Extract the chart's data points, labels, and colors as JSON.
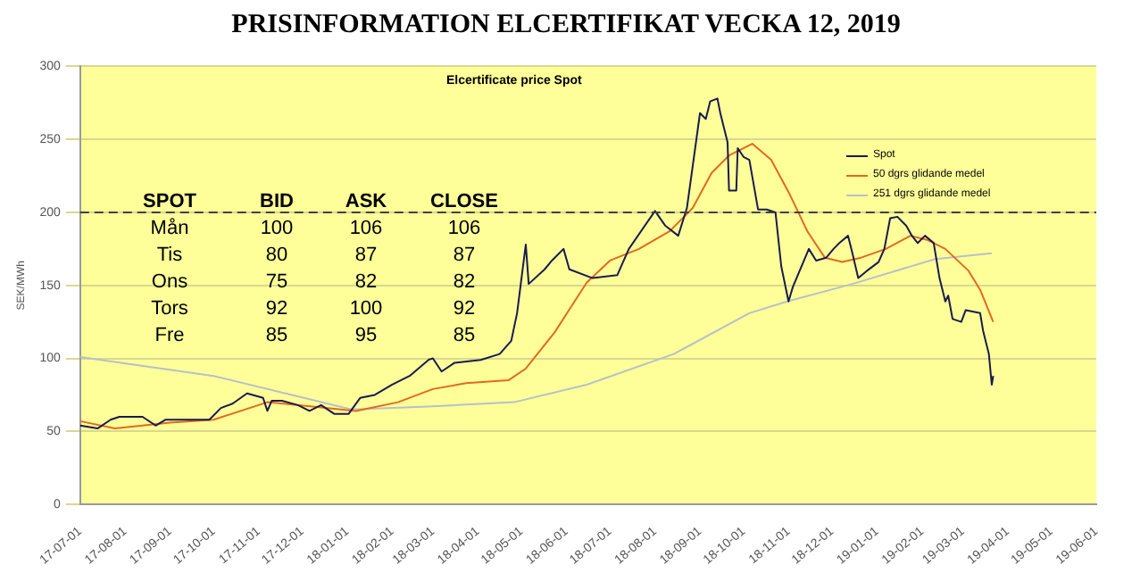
{
  "chart_data": {
    "type": "line",
    "title": "PRISINFORMATION ELCERTIFIKAT VECKA 12, 2019",
    "subtitle": "Elcertificate price Spot",
    "ylabel": "SEK/MWh",
    "annotations": [
      "SPOT",
      "BID",
      "ASK",
      "CLOSE",
      "Mån",
      "100",
      "106",
      "106",
      "Tis",
      "80",
      "87",
      "87",
      "Ons",
      "75",
      "82",
      "82",
      "Tors",
      "92",
      "100",
      "92",
      "Fre",
      "85",
      "95",
      "85"
    ],
    "ylim": [
      0,
      300
    ],
    "yticks": [
      0,
      50,
      100,
      150,
      200,
      250,
      300
    ],
    "xlim": [
      "2017-07-01",
      "2019-06-01"
    ],
    "xticks": [
      {
        "value": "2017-07-01",
        "label": "17-07-01"
      },
      {
        "value": "2017-08-01",
        "label": "17-08-01"
      },
      {
        "value": "2017-09-01",
        "label": "17-09-01"
      },
      {
        "value": "2017-10-01",
        "label": "17-10-01"
      },
      {
        "value": "2017-11-01",
        "label": "17-11-01"
      },
      {
        "value": "2017-12-01",
        "label": "17-12-01"
      },
      {
        "value": "2018-01-01",
        "label": "18-01-01"
      },
      {
        "value": "2018-02-01",
        "label": "18-02-01"
      },
      {
        "value": "2018-03-01",
        "label": "18-03-01"
      },
      {
        "value": "2018-04-01",
        "label": "18-04-01"
      },
      {
        "value": "2018-05-01",
        "label": "18-05-01"
      },
      {
        "value": "2018-06-01",
        "label": "18-06-01"
      },
      {
        "value": "2018-07-01",
        "label": "18-07-01"
      },
      {
        "value": "2018-08-01",
        "label": "18-08-01"
      },
      {
        "value": "2018-09-01",
        "label": "18-09-01"
      },
      {
        "value": "2018-10-01",
        "label": "18-10-01"
      },
      {
        "value": "2018-11-01",
        "label": "18-11-01"
      },
      {
        "value": "2018-12-01",
        "label": "18-12-01"
      },
      {
        "value": "2019-01-01",
        "label": "19-01-01"
      },
      {
        "value": "2019-02-01",
        "label": "19-02-01"
      },
      {
        "value": "2019-03-01",
        "label": "19-03-01"
      },
      {
        "value": "2019-04-01",
        "label": "19-04-01"
      },
      {
        "value": "2019-05-01",
        "label": "19-05-01"
      },
      {
        "value": "2019-06-01",
        "label": "19-06-01"
      }
    ],
    "grid": "y",
    "legend": "top right",
    "marker": "none",
    "line_style": "solid",
    "ref_lines": [
      {
        "axis": "y",
        "value": 200,
        "color": "#404040",
        "line_style": "dashed"
      }
    ],
    "series": [
      {
        "name": "Spot",
        "color": "#1a1a50",
        "x": [
          "2017-07-01",
          "2017-07-13",
          "2017-07-22",
          "2017-07-28",
          "2017-08-13",
          "2017-08-22",
          "2017-08-29",
          "2017-09-28",
          "2017-10-06",
          "2017-10-14",
          "2017-10-24",
          "2017-11-04",
          "2017-11-07",
          "2017-11-10",
          "2017-11-17",
          "2017-11-28",
          "2017-12-06",
          "2017-12-14",
          "2017-12-23",
          "2018-01-02",
          "2018-01-10",
          "2018-01-20",
          "2018-02-01",
          "2018-02-13",
          "2018-02-26",
          "2018-03-01",
          "2018-03-07",
          "2018-03-16",
          "2018-04-03",
          "2018-04-16",
          "2018-04-24",
          "2018-04-28",
          "2018-05-04",
          "2018-05-06",
          "2018-05-17",
          "2018-05-22",
          "2018-05-30",
          "2018-06-03",
          "2018-06-19",
          "2018-07-06",
          "2018-07-14",
          "2018-08-01",
          "2018-08-08",
          "2018-08-17",
          "2018-08-23",
          "2018-09-01",
          "2018-09-05",
          "2018-09-08",
          "2018-09-13",
          "2018-09-15",
          "2018-09-20",
          "2018-09-21",
          "2018-09-26",
          "2018-09-27",
          "2018-10-01",
          "2018-10-05",
          "2018-10-11",
          "2018-10-17",
          "2018-10-23",
          "2018-10-27",
          "2018-11-01",
          "2018-11-04",
          "2018-11-15",
          "2018-11-20",
          "2018-11-27",
          "2018-12-02",
          "2018-12-06",
          "2018-12-12",
          "2018-12-15",
          "2018-12-19",
          "2018-12-25",
          "2019-01-02",
          "2019-01-06",
          "2019-01-10",
          "2019-01-15",
          "2019-01-21",
          "2019-01-25",
          "2019-01-29",
          "2019-02-03",
          "2019-02-09",
          "2019-02-13",
          "2019-02-17",
          "2019-02-19",
          "2019-02-22",
          "2019-02-28",
          "2019-03-03",
          "2019-03-13",
          "2019-03-15",
          "2019-03-19",
          "2019-03-21",
          "2019-03-22"
        ],
        "values": [
          54,
          52,
          58,
          60,
          60,
          54,
          58,
          58,
          66,
          69,
          76,
          73,
          64,
          71,
          71,
          68,
          64,
          68,
          62,
          62,
          73,
          75,
          82,
          88,
          99,
          100,
          91,
          97,
          99,
          103,
          112,
          131,
          178,
          151,
          161,
          167,
          175,
          161,
          155,
          157,
          175,
          201,
          191,
          184,
          203,
          268,
          264,
          276,
          278,
          268,
          248,
          215,
          215,
          244,
          238,
          236,
          202,
          202,
          200,
          163,
          139,
          149,
          175,
          167,
          169,
          175,
          179,
          184,
          172,
          155,
          160,
          166,
          175,
          196,
          197,
          191,
          184,
          179,
          184,
          179,
          155,
          139,
          143,
          127,
          125,
          133,
          131,
          119,
          103,
          82,
          88
        ]
      },
      {
        "name": "50 dgrs glidande medel",
        "color": "#e06a20",
        "x": [
          "2017-07-01",
          "2017-07-25",
          "2017-09-01",
          "2017-10-01",
          "2017-11-07",
          "2017-12-08",
          "2018-01-07",
          "2018-02-05",
          "2018-03-01",
          "2018-03-24",
          "2018-04-22",
          "2018-05-04",
          "2018-05-24",
          "2018-06-04",
          "2018-06-15",
          "2018-07-01",
          "2018-07-21",
          "2018-08-11",
          "2018-08-27",
          "2018-09-09",
          "2018-09-21",
          "2018-10-07",
          "2018-10-20",
          "2018-11-02",
          "2018-11-14",
          "2018-11-26",
          "2018-12-08",
          "2018-12-21",
          "2019-01-07",
          "2019-01-24",
          "2019-02-05",
          "2019-02-17",
          "2019-03-05",
          "2019-03-13",
          "2019-03-22"
        ],
        "values": [
          57,
          52,
          56,
          58,
          70,
          67,
          64,
          70,
          79,
          83,
          85,
          93,
          118,
          135,
          152,
          167,
          175,
          187,
          203,
          227,
          239,
          247,
          236,
          212,
          187,
          169,
          166,
          169,
          175,
          184,
          181,
          175,
          160,
          147,
          125
        ]
      },
      {
        "name": "251 dgrs glidande medel",
        "color": "#b8c0c8",
        "x": [
          "2017-07-01",
          "2017-10-01",
          "2018-01-04",
          "2018-02-26",
          "2018-04-26",
          "2018-06-15",
          "2018-08-14",
          "2018-10-05",
          "2018-10-31",
          "2018-12-15",
          "2019-02-10",
          "2019-03-21"
        ],
        "values": [
          101,
          88,
          65,
          67,
          70,
          82,
          103,
          131,
          139,
          151,
          168,
          172
        ]
      }
    ]
  }
}
